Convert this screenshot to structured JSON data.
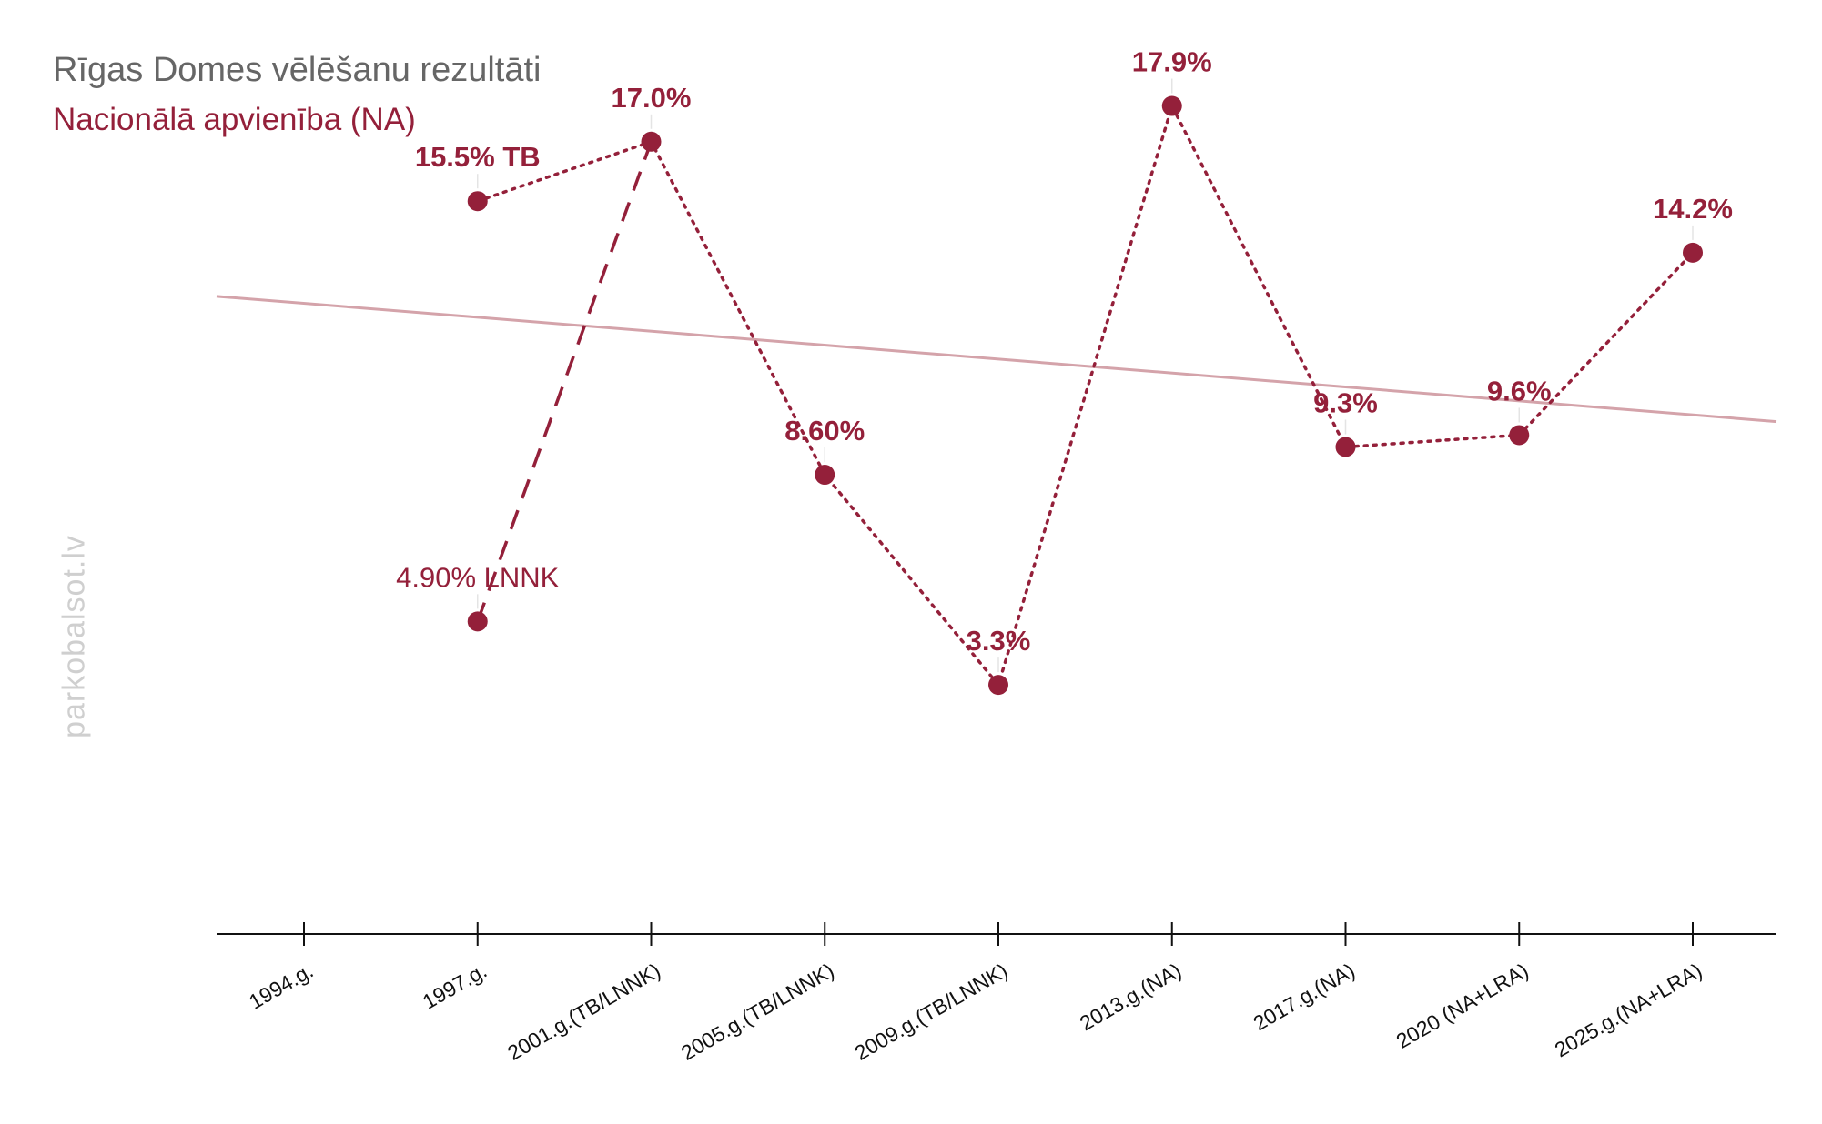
{
  "colors": {
    "accent": "#94203a",
    "trend": "#d4a3aa",
    "axis": "#111111",
    "title": "#666666",
    "watermark": "#cfcfcf"
  },
  "watermark": "parkobalsot.lv",
  "chart_data": {
    "type": "line",
    "title": "Rīgas Domes vēlēšanu rezultāti",
    "subtitle": "Nacionālā apvienība (NA)",
    "categories": [
      "1994.g.",
      "1997.g.",
      "2001.g.(TB/LNNK)",
      "2005.g.(TB/LNNK)",
      "2009.g.(TB/LNNK)",
      "2013.g.(NA)",
      "2017.g.(NA)",
      "2020 (NA+LRA)",
      "2025.g.(NA+LRA)"
    ],
    "ylim": [
      -3,
      21
    ],
    "series": [
      {
        "name": "TB",
        "style": "dotted",
        "x": [
          "1997.g.",
          "2001.g.(TB/LNNK)",
          "2005.g.(TB/LNNK)",
          "2009.g.(TB/LNNK)",
          "2013.g.(NA)",
          "2017.g.(NA)",
          "2020 (NA+LRA)",
          "2025.g.(NA+LRA)"
        ],
        "values": [
          15.5,
          17.0,
          8.6,
          3.3,
          17.9,
          9.3,
          9.6,
          14.2
        ],
        "labels": [
          "15.5% TB",
          "17.0%",
          "8.60%",
          "3.3%",
          "17.9%",
          "9.3%",
          "9.6%",
          "14.2%"
        ]
      },
      {
        "name": "LNNK",
        "style": "dashed",
        "x": [
          "1997.g.",
          "2001.g.(TB/LNNK)"
        ],
        "values": [
          4.9,
          17.0
        ],
        "labels": [
          "4.90% LNNK",
          ""
        ]
      }
    ],
    "trendline": {
      "start": 13.1,
      "end": 9.94
    }
  }
}
